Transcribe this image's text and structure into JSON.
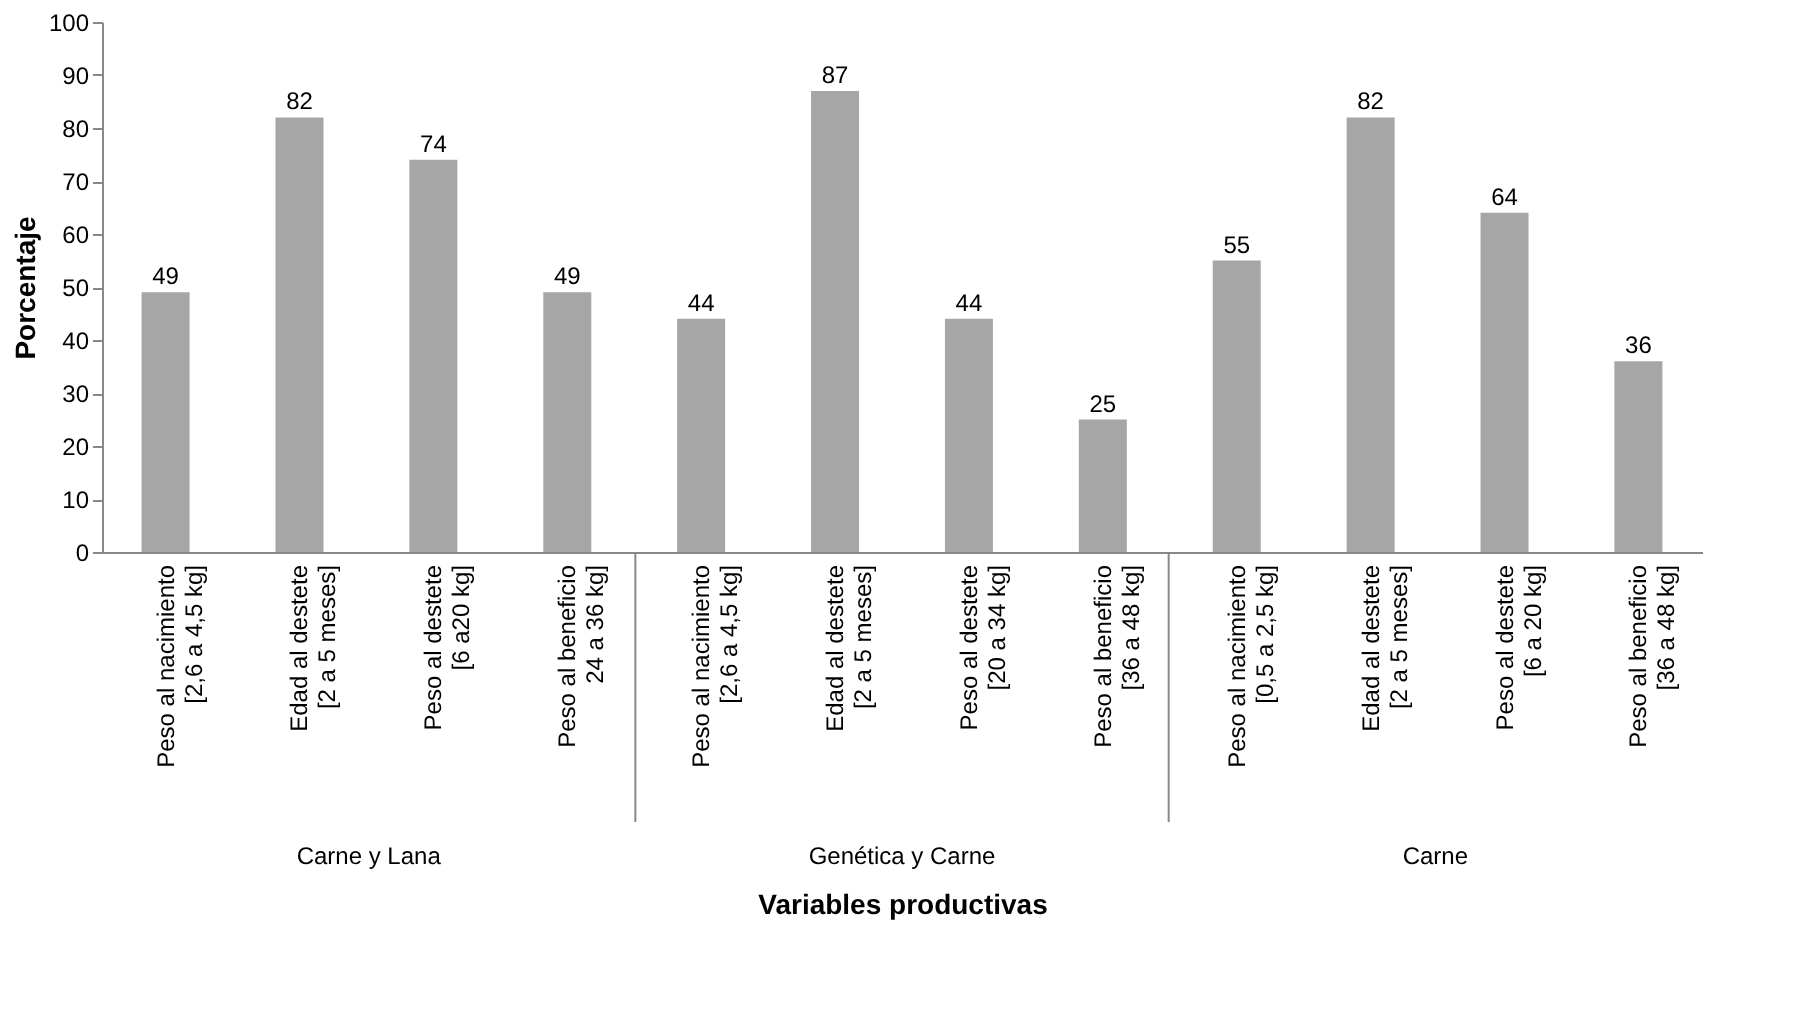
{
  "chart_data": {
    "type": "bar",
    "xlabel": "Variables productivas",
    "ylabel": "Porcentaje",
    "categories": [
      "Peso al nacimiento\n[2,6 a 4,5 kg]",
      "Edad al destete\n[2 a 5 meses]",
      "Peso al destete\n[6 a20 kg]",
      "Peso al beneficio\n24 a 36 kg]",
      "Peso al nacimiento\n[2,6 a 4,5 kg]",
      "Edad al destete\n[2 a 5 meses]",
      "Peso al destete\n[20 a 34 kg]",
      "Peso al beneficio\n[36 a 48 kg]",
      "Peso al nacimiento\n[0,5 a 2,5 kg]",
      "Edad al destete\n[2 a 5 meses]",
      "Peso al destete\n[6 a 20 kg]",
      "Peso al beneficio\n[36 a 48 kg]"
    ],
    "values": [
      49,
      82,
      74,
      49,
      44,
      87,
      44,
      25,
      55,
      82,
      64,
      36
    ],
    "color": "#a6a6a6",
    "ylim": [
      0,
      100
    ],
    "yticks": [
      0,
      10,
      20,
      30,
      40,
      50,
      60,
      70,
      80,
      90,
      100
    ],
    "data_labels": true,
    "grid": false,
    "annotations": [
      "Carne y Lana",
      "Genética y Carne",
      "Carne"
    ]
  }
}
